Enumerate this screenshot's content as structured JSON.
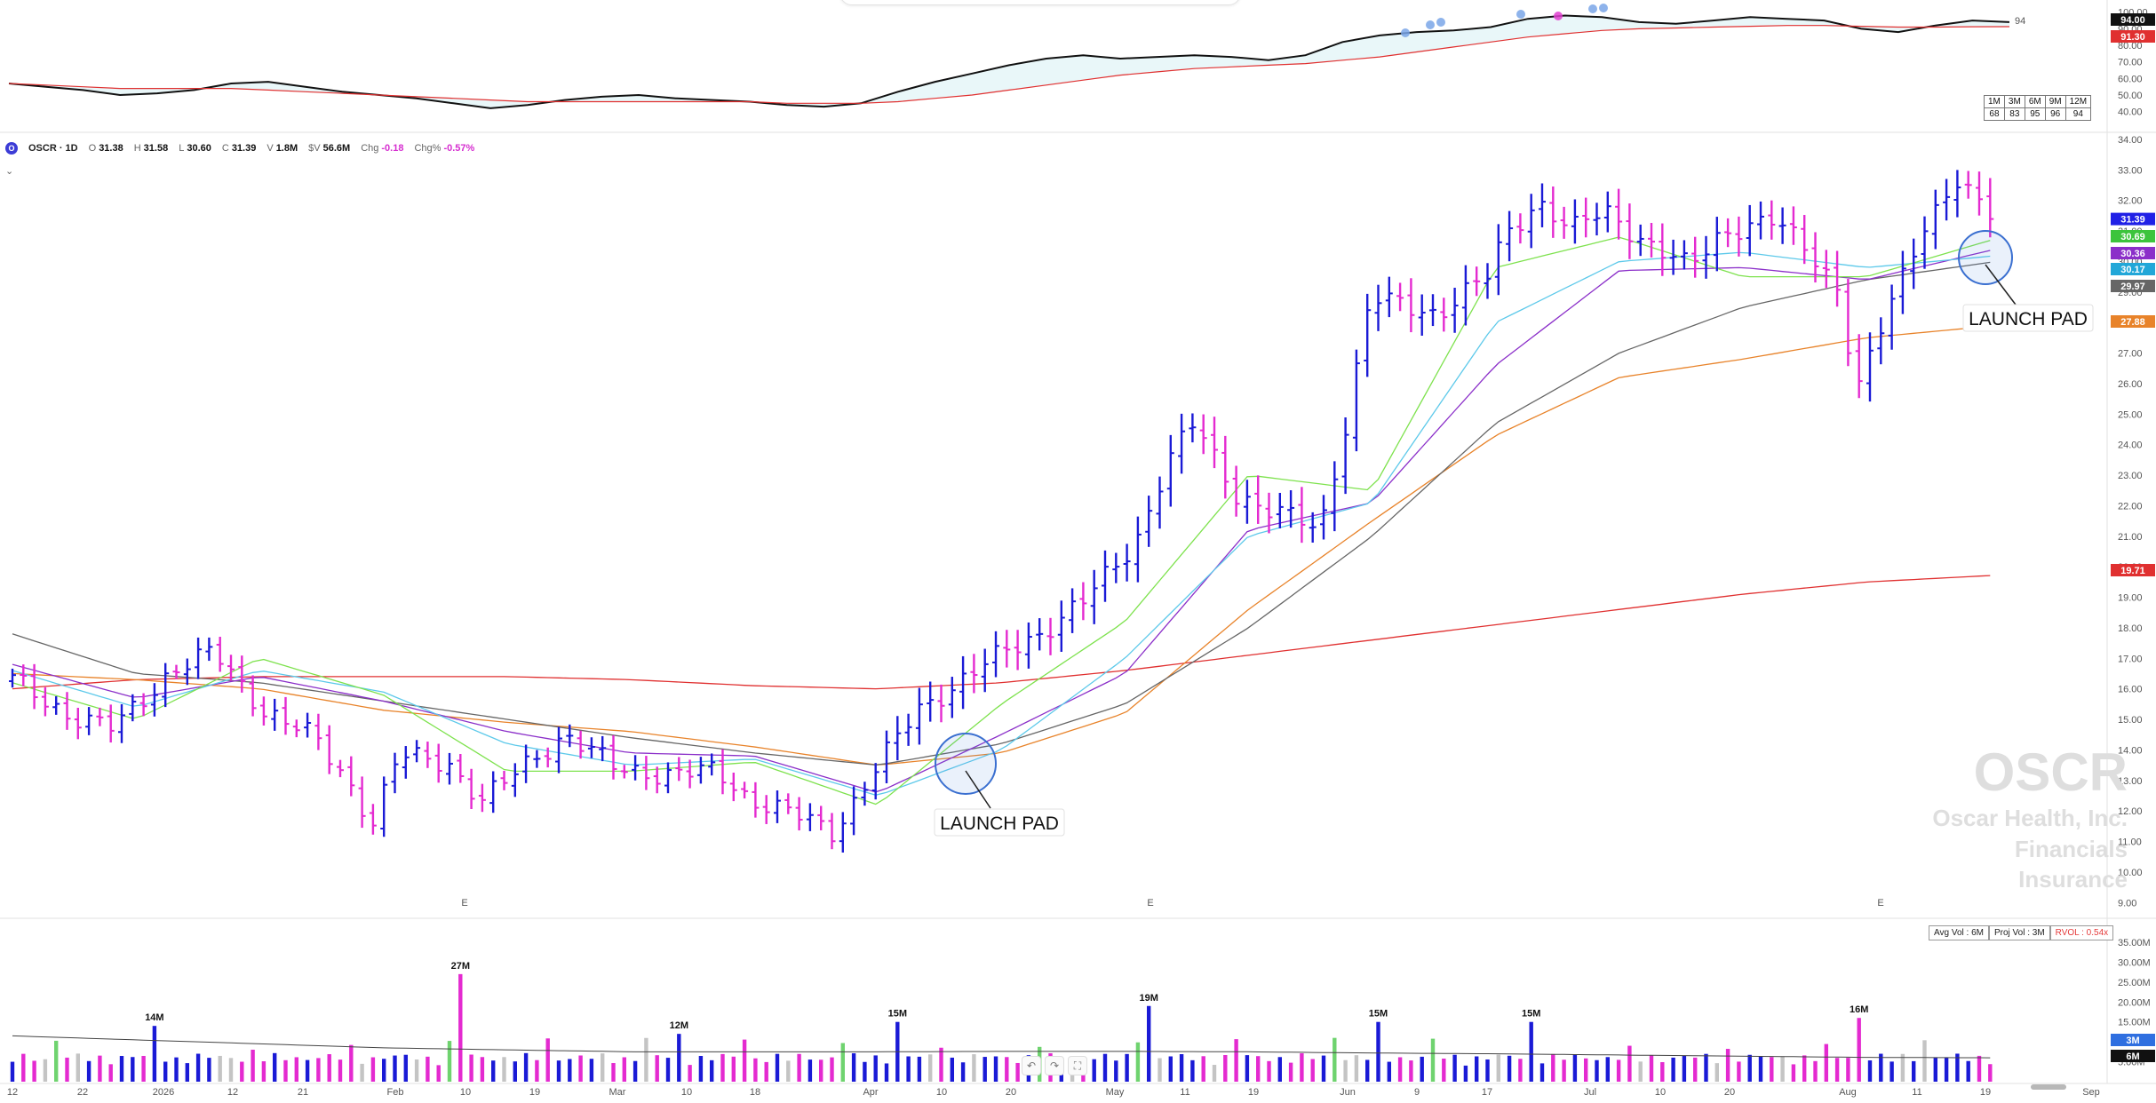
{
  "header": {
    "badge": "O",
    "symbol": "OSCR · 1D",
    "open_k": "O",
    "open": "31.38",
    "high_k": "H",
    "high": "31.58",
    "low_k": "L",
    "low": "30.60",
    "close_k": "C",
    "close": "31.39",
    "vol_k": "V",
    "vol": "1.8M",
    "dvol_k": "$V",
    "dvol": "56.6M",
    "chg_k": "Chg",
    "chg": "-0.18",
    "chgp_k": "Chg%",
    "chgp": "-0.57%",
    "expand_icon": "chevron-down-icon"
  },
  "rs_table": {
    "headers": [
      "1M",
      "3M",
      "6M",
      "9M",
      "12M"
    ],
    "values": [
      "68",
      "83",
      "95",
      "96",
      "94"
    ]
  },
  "volume_legend": {
    "avg": "Avg Vol : 6M",
    "proj": "Proj Vol : 3M",
    "rvol": "RVOL : 0.54x"
  },
  "watermark": {
    "ticker": "OSCR",
    "company": "Oscar Health, Inc.",
    "sector": "Financials",
    "industry": "Insurance"
  },
  "chart_data": [
    {
      "type": "line",
      "panel": "relative-strength",
      "y_ticks": [
        "100.00",
        "90.00",
        "80.00",
        "70.00",
        "60.00",
        "50.00",
        "40.00"
      ],
      "ylim": [
        35,
        102
      ],
      "series": [
        {
          "color": "#111111",
          "values": [
            57,
            55,
            53,
            50,
            51,
            53,
            57,
            58,
            55,
            52,
            50,
            48,
            45,
            42,
            44,
            47,
            49,
            50,
            48,
            47,
            46,
            44,
            43,
            45,
            52,
            58,
            63,
            68,
            72,
            74,
            72,
            73,
            74,
            73,
            71,
            74,
            82,
            86,
            88,
            89,
            91,
            96,
            98,
            97,
            94,
            93,
            95,
            97,
            96,
            95,
            90,
            88,
            92,
            95,
            94
          ]
        },
        {
          "color": "#e03030",
          "values": [
            57,
            56,
            55,
            54,
            54,
            54,
            54,
            53,
            52,
            51,
            50,
            49,
            48,
            47,
            46,
            46,
            46,
            46,
            46,
            46,
            46,
            45,
            45,
            45,
            46,
            48,
            50,
            53,
            56,
            59,
            62,
            64,
            66,
            67,
            68,
            69,
            71,
            73,
            76,
            79,
            82,
            85,
            87,
            89,
            90,
            90.5,
            91,
            91.5,
            92,
            92,
            91.5,
            91,
            91,
            91.2,
            91.3
          ]
        }
      ],
      "last_value_label": "94",
      "tags": [
        {
          "text": "94.00",
          "color": "#111111"
        },
        {
          "text": "91.30",
          "color": "#e03030"
        }
      ]
    },
    {
      "type": "bar",
      "panel": "price",
      "subtype": "ohlc",
      "y_ticks": [
        "34.00",
        "33.00",
        "32.00",
        "31.00",
        "30.00",
        "29.00",
        "28.00",
        "27.00",
        "26.00",
        "25.00",
        "24.00",
        "23.00",
        "22.00",
        "21.00",
        "20.00",
        "19.00",
        "18.00",
        "17.00",
        "16.00",
        "15.00",
        "14.00",
        "13.00",
        "12.00",
        "11.00",
        "10.00",
        "9.00"
      ],
      "ylim": [
        8.6,
        34.2
      ],
      "x_ticks": [
        "12",
        "22",
        "2026",
        "12",
        "21",
        "Feb",
        "10",
        "19",
        "Mar",
        "10",
        "18",
        "Apr",
        "10",
        "20",
        "May",
        "11",
        "19",
        "Jun",
        "9",
        "17",
        "Jul",
        "10",
        "20",
        "Aug",
        "11",
        "19",
        "Sep"
      ],
      "bar_count": 182,
      "anchors": [
        [
          0,
          16.3
        ],
        [
          7,
          15.1
        ],
        [
          12,
          14.7
        ],
        [
          19,
          16.6
        ],
        [
          24,
          17.2
        ],
        [
          30,
          15.3
        ],
        [
          36,
          14.4
        ],
        [
          40,
          13.0
        ],
        [
          43,
          11.6
        ],
        [
          46,
          13.8
        ],
        [
          52,
          13.6
        ],
        [
          56,
          12.3
        ],
        [
          62,
          13.7
        ],
        [
          66,
          14.5
        ],
        [
          72,
          13.4
        ],
        [
          78,
          13.2
        ],
        [
          84,
          13.3
        ],
        [
          88,
          12.4
        ],
        [
          94,
          11.8
        ],
        [
          98,
          11.3
        ],
        [
          102,
          13.0
        ],
        [
          108,
          15.3
        ],
        [
          116,
          16.8
        ],
        [
          123,
          17.9
        ],
        [
          128,
          18.9
        ],
        [
          134,
          20.8
        ],
        [
          138,
          23.5
        ],
        [
          141,
          24.7
        ],
        [
          146,
          22.4
        ],
        [
          150,
          21.8
        ],
        [
          154,
          21.5
        ],
        [
          156,
          21.2
        ],
        [
          159,
          24.5
        ],
        [
          162,
          28.8
        ],
        [
          170,
          28.3
        ],
        [
          176,
          29.5
        ],
        [
          178,
          30.8
        ],
        [
          182,
          32.0
        ],
        [
          186,
          31.0
        ],
        [
          190,
          31.7
        ],
        [
          196,
          30.4
        ],
        [
          200,
          29.8
        ],
        [
          204,
          31.0
        ],
        [
          210,
          31.3
        ],
        [
          214,
          30.5
        ],
        [
          218,
          29.1
        ],
        [
          220,
          25.6
        ],
        [
          224,
          28.5
        ],
        [
          228,
          31.2
        ],
        [
          232,
          32.6
        ],
        [
          236,
          31.4
        ]
      ],
      "ma_lines": [
        {
          "color": "#e03030",
          "tag": "19.71",
          "values": [
            16.0,
            16.3,
            16.4,
            16.4,
            16.4,
            16.3,
            16.1,
            16.0,
            16.2,
            16.6,
            17.1,
            17.6,
            18.1,
            18.6,
            19.1,
            19.5,
            19.71
          ]
        },
        {
          "color": "#e8832a",
          "tag": "27.88",
          "values": [
            16.5,
            16.3,
            16.0,
            15.3,
            14.9,
            14.6,
            14.1,
            13.5,
            13.9,
            15.2,
            18.6,
            21.5,
            24.3,
            26.2,
            26.8,
            27.5,
            27.88
          ]
        },
        {
          "color": "#666666",
          "tag": "29.97",
          "values": [
            17.8,
            16.5,
            16.2,
            15.6,
            15.0,
            14.4,
            13.9,
            13.5,
            14.2,
            15.5,
            18.0,
            21.0,
            24.7,
            27.0,
            28.5,
            29.4,
            29.97
          ]
        },
        {
          "color": "#8b2fc9",
          "tag": "30.36",
          "values": [
            16.8,
            15.7,
            16.4,
            15.6,
            14.6,
            13.9,
            13.8,
            12.6,
            14.5,
            16.5,
            21.2,
            22.1,
            26.6,
            29.7,
            29.8,
            29.4,
            30.36
          ]
        },
        {
          "color": "#5dc9ea",
          "tag": "30.17",
          "values": [
            16.6,
            15.4,
            16.6,
            15.9,
            14.2,
            13.5,
            13.7,
            12.5,
            14.0,
            17.0,
            21.0,
            22.1,
            28.0,
            30.0,
            30.3,
            29.8,
            30.17
          ]
        },
        {
          "color": "#7ee24e",
          "tag": "30.69",
          "values": [
            16.2,
            15.0,
            17.0,
            15.8,
            13.3,
            13.3,
            13.6,
            12.2,
            15.5,
            18.2,
            23.0,
            22.5,
            29.8,
            30.8,
            29.5,
            29.5,
            30.69
          ]
        }
      ],
      "last_price_tag": {
        "text": "31.39",
        "color": "#2020e6"
      },
      "earnings_markers": [
        "E",
        "E",
        "E"
      ],
      "annotations": [
        "LAUNCH PAD",
        "LAUNCH PAD"
      ]
    },
    {
      "type": "bar",
      "panel": "volume",
      "y_ticks": [
        "35.00M",
        "30.00M",
        "25.00M",
        "20.00M",
        "15.00M",
        "10.00M",
        "5.00M"
      ],
      "ylim": [
        0,
        37
      ],
      "labels": [
        {
          "text": "14M",
          "value": 14
        },
        {
          "text": "27M",
          "value": 27
        },
        {
          "text": "12M",
          "value": 12
        },
        {
          "text": "15M",
          "value": 15
        },
        {
          "text": "19M",
          "value": 19
        },
        {
          "text": "15M",
          "value": 15
        },
        {
          "text": "15M",
          "value": 15
        },
        {
          "text": "16M",
          "value": 16
        }
      ],
      "avg_line_values": [
        11.5,
        10.5,
        9.5,
        8.5,
        8.0,
        7.5,
        7.5,
        7.5,
        7.6,
        7.6,
        7.5,
        7.2,
        7.0,
        6.7,
        6.4,
        6.1,
        6.0
      ],
      "tags": [
        {
          "text": "3M",
          "color": "#2f6fe0"
        },
        {
          "text": "6M",
          "color": "#111111"
        }
      ]
    }
  ],
  "colors": {
    "up": "#1a1ad6",
    "down": "#e42ad0",
    "vol_up_big": "#6fd36f",
    "vol_gray": "#c4c4c4"
  },
  "toolbar_icons": [
    "undo-icon",
    "redo-icon",
    "crosshair-icon"
  ]
}
